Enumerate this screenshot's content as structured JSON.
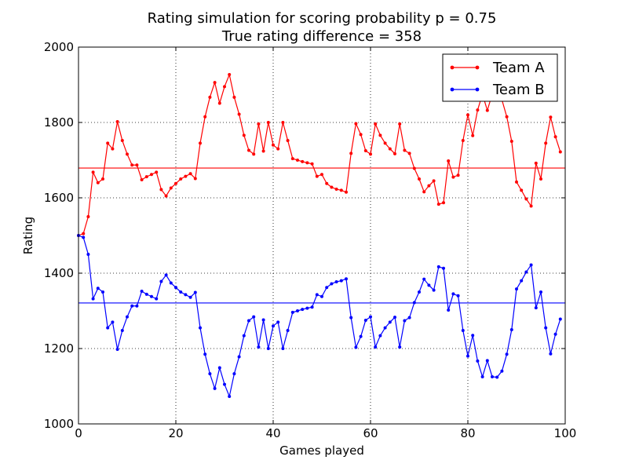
{
  "chart_data": {
    "type": "line",
    "title": "Rating simulation for scoring probability p = 0.75",
    "subtitle": "True rating difference = 358",
    "xlabel": "Games played",
    "ylabel": "Rating",
    "xlim": [
      0,
      100
    ],
    "ylim": [
      1000,
      2000
    ],
    "xticks": [
      0,
      20,
      40,
      60,
      80,
      100
    ],
    "yticks": [
      1000,
      1200,
      1400,
      1600,
      1800,
      2000
    ],
    "grid": true,
    "legend_position": "top-right",
    "series": [
      {
        "name": "Team A",
        "color": "#ff0000",
        "values": [
          1500,
          1505,
          1550,
          1668,
          1640,
          1650,
          1745,
          1730,
          1802,
          1752,
          1716,
          1687,
          1687,
          1648,
          1656,
          1662,
          1668,
          1622,
          1605,
          1626,
          1638,
          1650,
          1657,
          1664,
          1651,
          1745,
          1815,
          1867,
          1906,
          1851,
          1895,
          1927,
          1867,
          1822,
          1766,
          1726,
          1716,
          1796,
          1724,
          1800,
          1740,
          1730,
          1800,
          1752,
          1704,
          1700,
          1696,
          1693,
          1690,
          1657,
          1662,
          1638,
          1628,
          1623,
          1620,
          1615,
          1718,
          1797,
          1768,
          1725,
          1716,
          1796,
          1766,
          1745,
          1730,
          1717,
          1796,
          1726,
          1718,
          1678,
          1650,
          1616,
          1632,
          1645,
          1583,
          1587,
          1698,
          1655,
          1660,
          1752,
          1820,
          1765,
          1833,
          1875,
          1832,
          1875,
          1876,
          1860,
          1815,
          1750,
          1642,
          1620,
          1597,
          1578,
          1692,
          1650,
          1745,
          1814,
          1762,
          1722
        ]
      },
      {
        "name": "Team B",
        "color": "#0000ff",
        "values": [
          1500,
          1495,
          1450,
          1332,
          1360,
          1350,
          1255,
          1270,
          1198,
          1248,
          1284,
          1313,
          1313,
          1352,
          1344,
          1338,
          1332,
          1378,
          1395,
          1374,
          1362,
          1350,
          1343,
          1336,
          1349,
          1255,
          1185,
          1133,
          1094,
          1149,
          1105,
          1073,
          1133,
          1178,
          1234,
          1274,
          1284,
          1204,
          1276,
          1200,
          1260,
          1270,
          1200,
          1248,
          1296,
          1300,
          1304,
          1307,
          1310,
          1343,
          1338,
          1362,
          1372,
          1377,
          1380,
          1385,
          1282,
          1203,
          1232,
          1275,
          1284,
          1204,
          1234,
          1255,
          1270,
          1283,
          1204,
          1274,
          1282,
          1322,
          1350,
          1384,
          1368,
          1355,
          1417,
          1413,
          1302,
          1345,
          1340,
          1248,
          1180,
          1235,
          1167,
          1125,
          1168,
          1125,
          1124,
          1140,
          1185,
          1250,
          1358,
          1380,
          1403,
          1422,
          1308,
          1350,
          1255,
          1186,
          1238,
          1278
        ]
      }
    ],
    "reference_lines": [
      {
        "series": "Team A",
        "y": 1679,
        "color": "#ff0000"
      },
      {
        "series": "Team B",
        "y": 1321,
        "color": "#0000ff"
      }
    ]
  }
}
